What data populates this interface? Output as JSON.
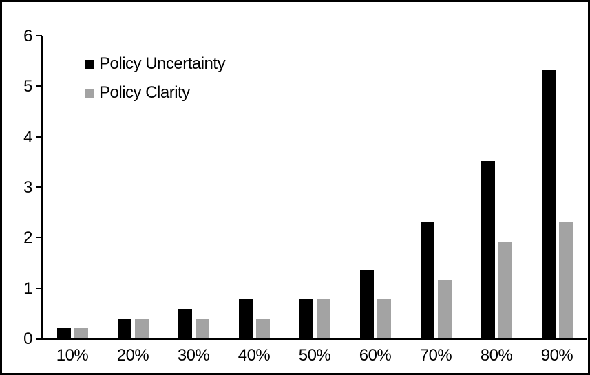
{
  "chart_data": {
    "type": "bar",
    "categories": [
      "10%",
      "20%",
      "30%",
      "40%",
      "50%",
      "60%",
      "70%",
      "80%",
      "90%"
    ],
    "series": [
      {
        "name": "Policy Uncertainty",
        "color": "#000000",
        "values": [
          0.19,
          0.38,
          0.57,
          0.76,
          0.77,
          1.34,
          2.3,
          3.5,
          5.3
        ]
      },
      {
        "name": "Policy Clarity",
        "color": "#a3a3a3",
        "values": [
          0.19,
          0.38,
          0.38,
          0.38,
          0.77,
          0.77,
          1.15,
          1.9,
          2.3
        ]
      }
    ],
    "title": "",
    "xlabel": "",
    "ylabel": "",
    "ylim": [
      0,
      6
    ],
    "yticks": [
      0,
      1,
      2,
      3,
      4,
      5,
      6
    ],
    "grid": false,
    "legend_position": "top-left-inside"
  },
  "colors": {
    "axis": "#000000",
    "frame": "#000000",
    "background": "#ffffff"
  }
}
